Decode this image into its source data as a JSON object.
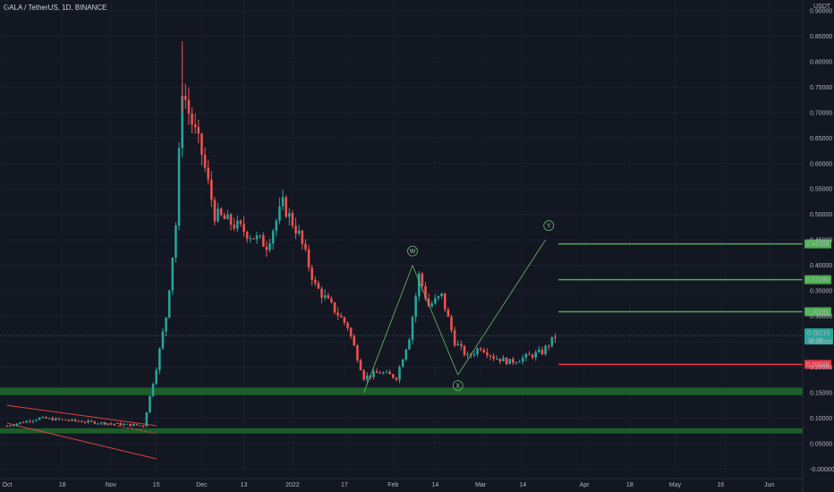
{
  "header": {
    "symbol_info": "GALA / TetherUS, 1D, BINANCE"
  },
  "price_axis": {
    "currency": "USDT"
  },
  "colors": {
    "background": "#131722",
    "up": "#26a69a",
    "down": "#ef5350",
    "zone": "#1e6b2a",
    "target_line": "#4caf50",
    "stop_line": "#f23645",
    "current_price_badge": "#26a69a"
  },
  "chart_data": {
    "type": "candlestick",
    "title": "GALA / TetherUS, 1D, BINANCE",
    "ylabel": "USDT",
    "ylim": [
      -0.01,
      0.9
    ],
    "yticks": [
      "0.90000",
      "0.85000",
      "0.80000",
      "0.75000",
      "0.70000",
      "0.65000",
      "0.60000",
      "0.55000",
      "0.50000",
      "0.45000",
      "0.40000",
      "0.35000",
      "0.30000",
      "0.25000",
      "0.20000",
      "0.15000",
      "0.10000",
      "0.05000",
      "-0.00000"
    ],
    "x_ticks": [
      "Oct",
      "18",
      "Nov",
      "15",
      "Dec",
      "13",
      "2022",
      "17",
      "Feb",
      "14",
      "Mar",
      "14",
      "Apr",
      "18",
      "May",
      "16",
      "Jun"
    ],
    "x_tick_days": [
      0,
      17,
      32,
      46,
      60,
      73,
      88,
      104,
      119,
      132,
      146,
      159,
      178,
      192,
      206,
      220,
      235
    ],
    "candles_summary": [
      {
        "day": 0,
        "close": 0.085
      },
      {
        "day": 10,
        "close": 0.1
      },
      {
        "day": 20,
        "close": 0.095
      },
      {
        "day": 30,
        "close": 0.09
      },
      {
        "day": 42,
        "close": 0.085
      },
      {
        "day": 46,
        "close": 0.2
      },
      {
        "day": 49,
        "close": 0.3
      },
      {
        "day": 52,
        "close": 0.48
      },
      {
        "day": 54,
        "close": 0.75
      },
      {
        "day": 56,
        "close": 0.7
      },
      {
        "day": 60,
        "close": 0.62
      },
      {
        "day": 64,
        "close": 0.5
      },
      {
        "day": 70,
        "close": 0.48
      },
      {
        "day": 75,
        "close": 0.46
      },
      {
        "day": 80,
        "close": 0.44
      },
      {
        "day": 85,
        "close": 0.52
      },
      {
        "day": 90,
        "close": 0.46
      },
      {
        "day": 95,
        "close": 0.36
      },
      {
        "day": 100,
        "close": 0.32
      },
      {
        "day": 105,
        "close": 0.28
      },
      {
        "day": 110,
        "close": 0.18
      },
      {
        "day": 115,
        "close": 0.19
      },
      {
        "day": 120,
        "close": 0.18
      },
      {
        "day": 124,
        "close": 0.26
      },
      {
        "day": 127,
        "close": 0.38
      },
      {
        "day": 130,
        "close": 0.32
      },
      {
        "day": 134,
        "close": 0.34
      },
      {
        "day": 138,
        "close": 0.25
      },
      {
        "day": 142,
        "close": 0.22
      },
      {
        "day": 146,
        "close": 0.24
      },
      {
        "day": 150,
        "close": 0.22
      },
      {
        "day": 155,
        "close": 0.21
      },
      {
        "day": 160,
        "close": 0.22
      },
      {
        "day": 165,
        "close": 0.23
      },
      {
        "day": 169,
        "close": 0.26
      }
    ],
    "current_price": {
      "value": "0.26215",
      "countdown": "18:20"
    },
    "levels": [
      {
        "label": "0.44208",
        "value": 0.44208,
        "kind": "target"
      },
      {
        "label": "0.37180",
        "value": 0.3718,
        "kind": "target"
      },
      {
        "label": "0.30895",
        "value": 0.30895,
        "kind": "target"
      },
      {
        "label": "0.20549",
        "value": 0.20549,
        "kind": "stop"
      }
    ],
    "zones": [
      {
        "low": 0.145,
        "high": 0.16
      },
      {
        "low": 0.07,
        "high": 0.08
      }
    ],
    "wave_labels": [
      {
        "label": "W",
        "day": 125,
        "value": 0.4
      },
      {
        "label": "X",
        "day": 139,
        "value": 0.185
      },
      {
        "label": "Y",
        "day": 167,
        "value": 0.45
      }
    ]
  }
}
